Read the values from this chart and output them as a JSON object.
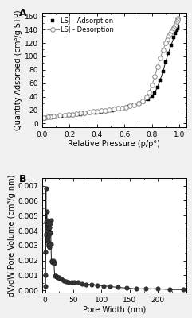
{
  "panel_A_label": "A",
  "panel_B_label": "B",
  "adsorption_label": "LSJ - Adsorption",
  "desorption_label": "LSJ - Desorption",
  "xlabel_A": "Relative Pressure (p/p°)",
  "ylabel_A": "Quantity Adsorbed (cm³/g STP)",
  "xlabel_B": "Pore Width (nm)",
  "ylabel_B": "dV/dW Pore Volume (cm³/g nm)",
  "xlim_A": [
    0.0,
    1.05
  ],
  "ylim_A": [
    -5,
    165
  ],
  "xlim_B": [
    -5,
    250
  ],
  "ylim_B": [
    -0.00015,
    0.0075
  ],
  "yticks_A": [
    0,
    20,
    40,
    60,
    80,
    100,
    120,
    140,
    160
  ],
  "xticks_A": [
    0.0,
    0.2,
    0.4,
    0.6,
    0.8,
    1.0
  ],
  "xticks_B": [
    0,
    50,
    100,
    150,
    200
  ],
  "yticks_B": [
    0.0,
    0.001,
    0.002,
    0.003,
    0.004,
    0.005,
    0.006,
    0.007
  ],
  "adsorption_x": [
    0.005,
    0.008,
    0.012,
    0.02,
    0.03,
    0.04,
    0.05,
    0.06,
    0.07,
    0.08,
    0.09,
    0.1,
    0.12,
    0.14,
    0.16,
    0.18,
    0.2,
    0.22,
    0.25,
    0.28,
    0.31,
    0.35,
    0.39,
    0.43,
    0.47,
    0.51,
    0.55,
    0.59,
    0.63,
    0.67,
    0.71,
    0.74,
    0.77,
    0.8,
    0.82,
    0.84,
    0.86,
    0.88,
    0.9,
    0.92,
    0.94,
    0.96,
    0.97,
    0.98,
    0.985,
    0.99
  ],
  "adsorption_y": [
    7.2,
    7.5,
    7.8,
    8.2,
    8.8,
    9.2,
    9.5,
    9.8,
    10.0,
    10.2,
    10.5,
    10.7,
    11.0,
    11.3,
    11.7,
    12.0,
    12.4,
    12.8,
    13.3,
    14.0,
    14.8,
    15.5,
    16.5,
    17.5,
    18.8,
    20.0,
    21.5,
    23.2,
    25.0,
    27.5,
    30.0,
    32.5,
    36.0,
    40.5,
    46.0,
    54.0,
    65.0,
    77.0,
    92.0,
    105.0,
    117.0,
    128.0,
    134.0,
    139.0,
    141.5,
    143.5
  ],
  "desorption_x": [
    0.99,
    0.985,
    0.98,
    0.975,
    0.97,
    0.96,
    0.95,
    0.94,
    0.93,
    0.92,
    0.91,
    0.9,
    0.88,
    0.86,
    0.84,
    0.82,
    0.8,
    0.78,
    0.76,
    0.73,
    0.7,
    0.67,
    0.64,
    0.61,
    0.58,
    0.55,
    0.52,
    0.49,
    0.46,
    0.43,
    0.4,
    0.37,
    0.34,
    0.31,
    0.28,
    0.25,
    0.22,
    0.19,
    0.16,
    0.13,
    0.1,
    0.08,
    0.06,
    0.04,
    0.02,
    0.01
  ],
  "desorption_y": [
    156.5,
    154.0,
    151.5,
    149.0,
    146.5,
    143.0,
    140.0,
    137.0,
    133.5,
    129.5,
    125.0,
    119.5,
    109.0,
    97.0,
    84.0,
    70.0,
    57.0,
    47.0,
    39.5,
    34.0,
    30.5,
    28.0,
    26.0,
    24.5,
    23.5,
    22.5,
    21.5,
    20.8,
    20.0,
    19.2,
    18.5,
    17.8,
    17.0,
    16.3,
    15.6,
    14.8,
    14.0,
    13.3,
    12.7,
    12.2,
    11.6,
    11.0,
    10.5,
    10.0,
    9.2,
    8.5
  ],
  "pore_x": [
    0.8,
    1.0,
    1.3,
    1.6,
    1.9,
    2.2,
    2.5,
    2.8,
    3.1,
    3.4,
    3.7,
    4.0,
    4.3,
    4.6,
    4.9,
    5.3,
    5.7,
    6.1,
    6.5,
    6.9,
    7.3,
    7.8,
    8.3,
    8.8,
    9.3,
    9.8,
    10.5,
    11.2,
    12.0,
    12.8,
    13.7,
    14.7,
    15.8,
    17.0,
    18.5,
    20.0,
    22.0,
    24.0,
    26.5,
    29.5,
    33.0,
    37.0,
    41.5,
    46.5,
    52.0,
    58.0,
    65.0,
    73.0,
    82.0,
    92.0,
    103.0,
    115.0,
    129.0,
    144.0,
    161.0,
    179.0,
    199.0,
    221.0,
    245.0
  ],
  "pore_y": [
    0.00025,
    0.001,
    0.00255,
    0.00685,
    0.0046,
    0.0037,
    0.0038,
    0.0043,
    0.0053,
    0.004,
    0.0047,
    0.0042,
    0.0045,
    0.0036,
    0.0035,
    0.0033,
    0.0031,
    0.0032,
    0.003,
    0.003,
    0.0029,
    0.0038,
    0.0042,
    0.0039,
    0.0045,
    0.0047,
    0.0031,
    0.00195,
    0.002,
    0.00195,
    0.00185,
    0.002,
    0.0018,
    0.00095,
    0.00095,
    0.0009,
    0.00085,
    0.00085,
    0.0008,
    0.00075,
    0.00065,
    0.0006,
    0.00055,
    0.00055,
    0.00055,
    0.00055,
    0.00045,
    0.0004,
    0.0004,
    0.00035,
    0.0003,
    0.00025,
    0.0002,
    0.00015,
    0.0001,
    0.0001,
    0.0001,
    5e-05,
    5e-05
  ],
  "adsorption_color": "#1a1a1a",
  "desorption_color": "#888888",
  "pore_color": "#1a1a1a",
  "bg_color": "#f0f0f0",
  "plot_bg_color": "#ffffff",
  "fontsize": 6.5,
  "label_fontsize": 7,
  "marker_size": 3.5,
  "pore_marker_size": 4.0
}
